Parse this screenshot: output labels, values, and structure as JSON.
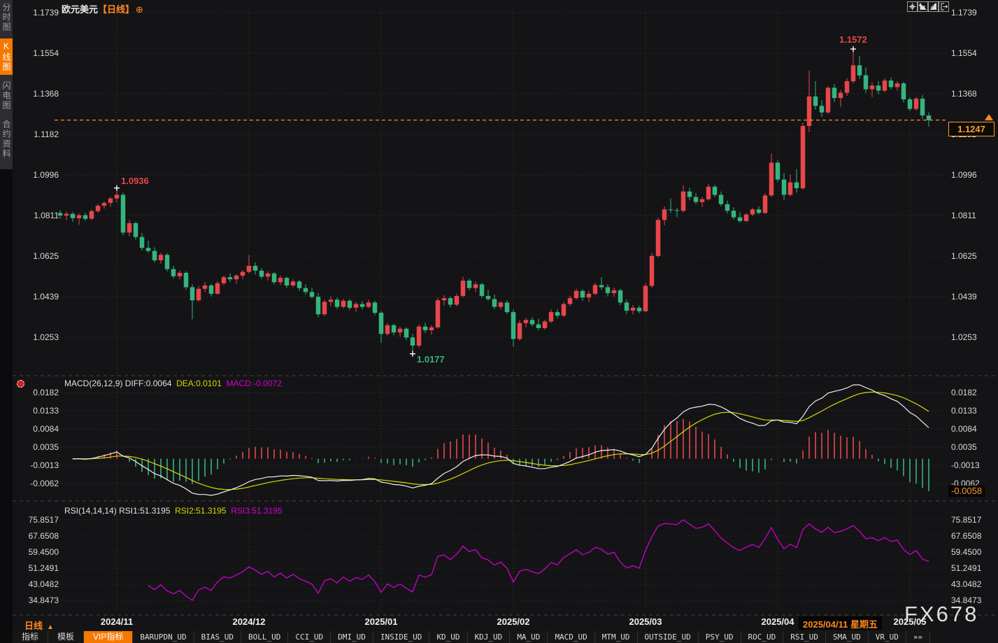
{
  "app": {
    "watermark": "FX678"
  },
  "header": {
    "title": "欧元美元",
    "period_tag": "【日线】",
    "add_symbol": "⊕"
  },
  "window_icons": [
    "pan-icon",
    "axis-left-icon",
    "axis-right-icon",
    "exit-chart-icon"
  ],
  "sidebar": {
    "items": [
      {
        "label": "分时图",
        "active": false
      },
      {
        "label": "K线图",
        "active": true
      },
      {
        "label": "闪电图",
        "active": false
      },
      {
        "label": "合约资料",
        "active": false
      }
    ]
  },
  "price_panel": {
    "axis_ticks": [
      "1.1739",
      "1.1554",
      "1.1368",
      "1.1182",
      "1.0996",
      "1.0811",
      "1.0625",
      "1.0439",
      "1.0253"
    ],
    "current_price": "1.1247"
  },
  "macd_panel": {
    "header": {
      "name": "MACD(26,12,9)",
      "diff": "DIFF:0.0064",
      "dea": "DEA:0.0101",
      "macd": "MACD:-0.0072"
    },
    "axis_ticks": [
      "0.0182",
      "0.0133",
      "0.0084",
      "0.0035",
      "-0.0013",
      "-0.0062"
    ],
    "current_value": "-0.0058"
  },
  "rsi_panel": {
    "header": {
      "name": "RSI(14,14,14)",
      "rsi1": "RSI1:51.3195",
      "rsi2": "RSI2:51.3195",
      "rsi3": "RSI3:51.3195"
    },
    "axis_ticks": [
      "75.8517",
      "67.6508",
      "59.4500",
      "51.2491",
      "43.0482",
      "34.8473"
    ]
  },
  "time_axis": {
    "months": [
      "2024/11",
      "2024/12",
      "2025/01",
      "2025/02",
      "2025/03",
      "2025/04",
      "2025/05"
    ],
    "period_selector": "日线",
    "date_tooltip": "2025/04/11 星期五"
  },
  "bottom_toolbar": {
    "items": [
      {
        "label": "指标",
        "cn": true,
        "active": false
      },
      {
        "label": "模板",
        "cn": true,
        "active": false
      },
      {
        "label": "VIP指标",
        "cn": true,
        "active": true
      },
      {
        "label": "BARUPDN_UD"
      },
      {
        "label": "BIAS_UD"
      },
      {
        "label": "BOLL_UD"
      },
      {
        "label": "CCI_UD"
      },
      {
        "label": "DMI_UD"
      },
      {
        "label": "INSIDE_UD"
      },
      {
        "label": "KD_UD"
      },
      {
        "label": "KDJ_UD"
      },
      {
        "label": "MA_UD"
      },
      {
        "label": "MACD_UD"
      },
      {
        "label": "MTM_UD"
      },
      {
        "label": "OUTSIDE_UD"
      },
      {
        "label": "PSY_UD"
      },
      {
        "label": "ROC_UD"
      },
      {
        "label": "RSI_UD"
      },
      {
        "label": "SMA_UD"
      },
      {
        "label": "VR_UD"
      },
      {
        "label": "»»",
        "more": true
      }
    ]
  },
  "colors": {
    "up": "#e8464b",
    "down": "#35b57e",
    "accent": "#ff8a1e",
    "accent_bg": "#f57900",
    "diff_line": "#f0f0f0",
    "dea_line": "#d8d800",
    "macd_text": "#d400d4",
    "rsi_line": "#cc00cc",
    "grid_h": "#909090",
    "grid_v": "#a4524a",
    "axis_text": "#d9d9d9",
    "bg": "#141416"
  },
  "chart_data": {
    "type": "candlestick",
    "symbol": "欧元美元",
    "period": "日线",
    "price_axis": {
      "min": 1.0253,
      "max": 1.1739
    },
    "last_price": 1.1247,
    "month_tick_indices": [
      9,
      30,
      51,
      72,
      93,
      114,
      135
    ],
    "markers": {
      "early_high": {
        "index": 9,
        "label": "1.0936",
        "value": 1.0936
      },
      "low": {
        "index": 56,
        "label": "1.0177",
        "value": 1.0177
      },
      "high": {
        "index": 126,
        "label": "1.1572",
        "value": 1.1572
      }
    },
    "indicators": {
      "macd": {
        "params": [
          26,
          12,
          9
        ],
        "diff": 0.0064,
        "dea": 0.0101,
        "macd": -0.0072,
        "axis_ticks": [
          0.0182,
          0.0133,
          0.0084,
          0.0035,
          -0.0013,
          -0.0062
        ],
        "last_hist_label": -0.0058
      },
      "rsi": {
        "params": [
          14,
          14,
          14
        ],
        "rsi1": 51.3195,
        "rsi2": 51.3195,
        "rsi3": 51.3195,
        "axis_ticks": [
          75.8517,
          67.6508,
          59.45,
          51.2491,
          43.0482,
          34.8473
        ]
      }
    },
    "candles": [
      [
        1.0822,
        1.0835,
        1.0795,
        1.081
      ],
      [
        1.081,
        1.0828,
        1.0788,
        1.0818
      ],
      [
        1.0818,
        1.0825,
        1.0782,
        1.0798
      ],
      [
        1.0798,
        1.082,
        1.0768,
        1.0812
      ],
      [
        1.0812,
        1.0822,
        1.0785,
        1.0795
      ],
      [
        1.0795,
        1.0838,
        1.079,
        1.083
      ],
      [
        1.083,
        1.0862,
        1.0822,
        1.0855
      ],
      [
        1.0855,
        1.0875,
        1.0842,
        1.0868
      ],
      [
        1.0868,
        1.0895,
        1.085,
        1.0888
      ],
      [
        1.0888,
        1.0936,
        1.087,
        1.0905
      ],
      [
        1.0905,
        1.0915,
        1.072,
        1.0732
      ],
      [
        1.0732,
        1.079,
        1.0715,
        1.0775
      ],
      [
        1.0775,
        1.0782,
        1.07,
        1.0712
      ],
      [
        1.0712,
        1.073,
        1.065,
        1.0662
      ],
      [
        1.0662,
        1.0695,
        1.064,
        1.0648
      ],
      [
        1.0648,
        1.0665,
        1.0595,
        1.0605
      ],
      [
        1.0605,
        1.064,
        1.059,
        1.063
      ],
      [
        1.063,
        1.0638,
        1.0555,
        1.0565
      ],
      [
        1.0565,
        1.058,
        1.0522,
        1.0532
      ],
      [
        1.0532,
        1.056,
        1.0518,
        1.0548
      ],
      [
        1.0548,
        1.0555,
        1.047,
        1.0482
      ],
      [
        1.0482,
        1.0495,
        1.0335,
        1.0422
      ],
      [
        1.0422,
        1.0488,
        1.0415,
        1.0475
      ],
      [
        1.0475,
        1.0505,
        1.046,
        1.049
      ],
      [
        1.049,
        1.0498,
        1.044,
        1.0452
      ],
      [
        1.0452,
        1.051,
        1.0448,
        1.05
      ],
      [
        1.05,
        1.0535,
        1.049,
        1.0528
      ],
      [
        1.0528,
        1.0545,
        1.0505,
        1.0518
      ],
      [
        1.0518,
        1.0542,
        1.0498,
        1.0535
      ],
      [
        1.0535,
        1.056,
        1.052,
        1.0552
      ],
      [
        1.0552,
        1.063,
        1.0545,
        1.058
      ],
      [
        1.058,
        1.0595,
        1.054,
        1.0558
      ],
      [
        1.0558,
        1.057,
        1.052,
        1.053
      ],
      [
        1.053,
        1.0555,
        1.0512,
        1.0545
      ],
      [
        1.0545,
        1.0552,
        1.0495,
        1.0505
      ],
      [
        1.0505,
        1.0535,
        1.0492,
        1.0525
      ],
      [
        1.0525,
        1.053,
        1.0478,
        1.049
      ],
      [
        1.049,
        1.0518,
        1.0482,
        1.0508
      ],
      [
        1.0508,
        1.0515,
        1.0465,
        1.0478
      ],
      [
        1.0478,
        1.0495,
        1.0448,
        1.046
      ],
      [
        1.046,
        1.048,
        1.043,
        1.0438
      ],
      [
        1.0438,
        1.0455,
        1.0344,
        1.0358
      ],
      [
        1.0358,
        1.0425,
        1.035,
        1.0415
      ],
      [
        1.0415,
        1.044,
        1.0395,
        1.0425
      ],
      [
        1.0425,
        1.0435,
        1.0382,
        1.0392
      ],
      [
        1.0392,
        1.043,
        1.0385,
        1.042
      ],
      [
        1.042,
        1.0428,
        1.0378,
        1.0388
      ],
      [
        1.0388,
        1.0415,
        1.037,
        1.0405
      ],
      [
        1.0405,
        1.0418,
        1.038,
        1.0392
      ],
      [
        1.0392,
        1.0425,
        1.0386,
        1.0412
      ],
      [
        1.0412,
        1.042,
        1.0355,
        1.0365
      ],
      [
        1.0365,
        1.0372,
        1.0226,
        1.0268
      ],
      [
        1.0268,
        1.0318,
        1.026,
        1.0308
      ],
      [
        1.0308,
        1.0315,
        1.0262,
        1.0275
      ],
      [
        1.0275,
        1.0302,
        1.0255,
        1.0292
      ],
      [
        1.0292,
        1.0298,
        1.024,
        1.0252
      ],
      [
        1.0252,
        1.0268,
        1.0177,
        1.0215
      ],
      [
        1.0215,
        1.0312,
        1.0205,
        1.0302
      ],
      [
        1.0302,
        1.032,
        1.0272,
        1.0285
      ],
      [
        1.0285,
        1.0308,
        1.0265,
        1.0298
      ],
      [
        1.0298,
        1.0435,
        1.0292,
        1.0422
      ],
      [
        1.0422,
        1.0445,
        1.0398,
        1.0432
      ],
      [
        1.0432,
        1.044,
        1.039,
        1.0402
      ],
      [
        1.0402,
        1.0452,
        1.0395,
        1.0442
      ],
      [
        1.0442,
        1.053,
        1.0435,
        1.0512
      ],
      [
        1.0512,
        1.0522,
        1.0468,
        1.0478
      ],
      [
        1.0478,
        1.0508,
        1.046,
        1.0495
      ],
      [
        1.0495,
        1.0502,
        1.0432,
        1.0442
      ],
      [
        1.0442,
        1.047,
        1.042,
        1.0428
      ],
      [
        1.0428,
        1.0448,
        1.0382,
        1.0392
      ],
      [
        1.0392,
        1.0418,
        1.038,
        1.0412
      ],
      [
        1.0412,
        1.0422,
        1.036,
        1.0368
      ],
      [
        1.0368,
        1.038,
        1.021,
        1.0245
      ],
      [
        1.0245,
        1.033,
        1.0238,
        1.0318
      ],
      [
        1.0318,
        1.0342,
        1.0298,
        1.0332
      ],
      [
        1.0332,
        1.0345,
        1.0302,
        1.0312
      ],
      [
        1.0312,
        1.0338,
        1.0285,
        1.0295
      ],
      [
        1.0295,
        1.0332,
        1.0288,
        1.0325
      ],
      [
        1.0325,
        1.038,
        1.0318,
        1.0368
      ],
      [
        1.0368,
        1.0382,
        1.034,
        1.0352
      ],
      [
        1.0352,
        1.0415,
        1.0345,
        1.0405
      ],
      [
        1.0405,
        1.0442,
        1.0395,
        1.0432
      ],
      [
        1.0432,
        1.0475,
        1.0425,
        1.0465
      ],
      [
        1.0465,
        1.0472,
        1.042,
        1.0435
      ],
      [
        1.0435,
        1.0465,
        1.0415,
        1.0452
      ],
      [
        1.0452,
        1.0502,
        1.0445,
        1.0492
      ],
      [
        1.0492,
        1.0528,
        1.047,
        1.0482
      ],
      [
        1.0482,
        1.0495,
        1.044,
        1.0455
      ],
      [
        1.0455,
        1.048,
        1.0438,
        1.0468
      ],
      [
        1.0468,
        1.0475,
        1.04,
        1.0412
      ],
      [
        1.0412,
        1.0425,
        1.036,
        1.0375
      ],
      [
        1.0375,
        1.04,
        1.0358,
        1.0388
      ],
      [
        1.0388,
        1.0398,
        1.0362,
        1.0372
      ],
      [
        1.0372,
        1.05,
        1.0368,
        1.0488
      ],
      [
        1.0488,
        1.064,
        1.048,
        1.0625
      ],
      [
        1.0625,
        1.08,
        1.0618,
        1.079
      ],
      [
        1.079,
        1.0852,
        1.0765,
        1.0838
      ],
      [
        1.0838,
        1.0888,
        1.0822,
        1.0835
      ],
      [
        1.0835,
        1.0845,
        1.0802,
        1.0832
      ],
      [
        1.0832,
        1.0948,
        1.0825,
        1.092
      ],
      [
        1.092,
        1.0936,
        1.088,
        1.0895
      ],
      [
        1.0895,
        1.0912,
        1.0862,
        1.0872
      ],
      [
        1.0872,
        1.0895,
        1.085,
        1.0885
      ],
      [
        1.0885,
        1.0955,
        1.0878,
        1.0942
      ],
      [
        1.0942,
        1.095,
        1.0895,
        1.0905
      ],
      [
        1.0905,
        1.092,
        1.0852,
        1.0862
      ],
      [
        1.0862,
        1.0878,
        1.082,
        1.0832
      ],
      [
        1.0832,
        1.0848,
        1.0792,
        1.0802
      ],
      [
        1.0802,
        1.0825,
        1.0778,
        1.0785
      ],
      [
        1.0785,
        1.0822,
        1.078,
        1.0815
      ],
      [
        1.0815,
        1.0845,
        1.0808,
        1.0838
      ],
      [
        1.0838,
        1.0852,
        1.0815,
        1.0822
      ],
      [
        1.0822,
        1.0912,
        1.0818,
        1.0902
      ],
      [
        1.0902,
        1.1095,
        1.0895,
        1.1052
      ],
      [
        1.1052,
        1.1065,
        1.0962,
        1.0975
      ],
      [
        1.0975,
        1.1005,
        1.0882,
        1.0905
      ],
      [
        1.0905,
        1.0998,
        1.0898,
        1.0962
      ],
      [
        1.0962,
        1.1022,
        1.0915,
        1.0935
      ],
      [
        1.0935,
        1.1235,
        1.093,
        1.122
      ],
      [
        1.122,
        1.1474,
        1.1192,
        1.1355
      ],
      [
        1.1355,
        1.1425,
        1.1295,
        1.1312
      ],
      [
        1.1312,
        1.1338,
        1.1262,
        1.1282
      ],
      [
        1.1282,
        1.1402,
        1.1275,
        1.1395
      ],
      [
        1.1395,
        1.1412,
        1.133,
        1.1348
      ],
      [
        1.1348,
        1.1385,
        1.1308,
        1.1372
      ],
      [
        1.1372,
        1.1438,
        1.1358,
        1.1425
      ],
      [
        1.1425,
        1.1572,
        1.1415,
        1.1498
      ],
      [
        1.1498,
        1.154,
        1.1435,
        1.1452
      ],
      [
        1.1452,
        1.1488,
        1.1372,
        1.1388
      ],
      [
        1.1388,
        1.142,
        1.1352,
        1.1405
      ],
      [
        1.1405,
        1.1425,
        1.1365,
        1.1382
      ],
      [
        1.1382,
        1.1438,
        1.1375,
        1.1428
      ],
      [
        1.1428,
        1.1442,
        1.1388,
        1.1398
      ],
      [
        1.1398,
        1.1425,
        1.1382,
        1.1415
      ],
      [
        1.1415,
        1.1422,
        1.1328,
        1.1342
      ],
      [
        1.1342,
        1.1352,
        1.1288,
        1.1298
      ],
      [
        1.1298,
        1.1352,
        1.129,
        1.1345
      ],
      [
        1.1345,
        1.1362,
        1.1252,
        1.1268
      ],
      [
        1.1268,
        1.1282,
        1.1218,
        1.1247
      ]
    ]
  }
}
